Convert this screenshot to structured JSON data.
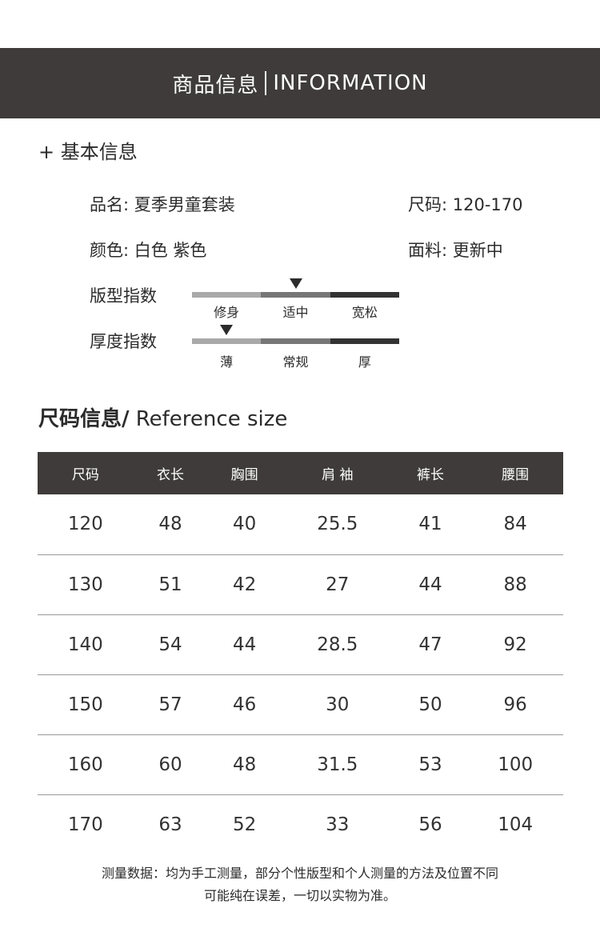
{
  "banner": {
    "title_cn": "商品信息",
    "title_en": "INFORMATION"
  },
  "basic": {
    "heading": "+ 基本信息",
    "name": "品名: 夏季男童套装",
    "size": "尺码: 120-170",
    "color": "颜色: 白色 紫色",
    "fabric": "面料: 更新中",
    "fit": {
      "label": "版型指数",
      "options": [
        "修身",
        "适中",
        "宽松"
      ],
      "selected_index": 1
    },
    "thickness": {
      "label": "厚度指数",
      "options": [
        "薄",
        "常规",
        "厚"
      ],
      "selected_index": 0
    }
  },
  "size_section": {
    "title_cn": "尺码信息/",
    "title_en": " Reference size"
  },
  "table": {
    "headers": [
      "尺码",
      "衣长",
      "胸围",
      "肩 袖",
      "裤长",
      "腰围"
    ],
    "rows": [
      [
        "120",
        "48",
        "40",
        "25.5",
        "41",
        "84"
      ],
      [
        "130",
        "51",
        "42",
        "27",
        "44",
        "88"
      ],
      [
        "140",
        "54",
        "44",
        "28.5",
        "47",
        "92"
      ],
      [
        "150",
        "57",
        "46",
        "30",
        "50",
        "96"
      ],
      [
        "160",
        "60",
        "48",
        "31.5",
        "53",
        "100"
      ],
      [
        "170",
        "63",
        "52",
        "33",
        "56",
        "104"
      ]
    ]
  },
  "note": {
    "line1": "测量数据：均为手工测量，部分个性版型和个人测量的方法及位置不同",
    "line2": "可能纯在误差，一切以实物为准。"
  },
  "colors": {
    "banner": "#3e3b3a",
    "bar_light": "#a9a9a9",
    "bar_mid": "#767676",
    "bar_dark": "#333333"
  }
}
